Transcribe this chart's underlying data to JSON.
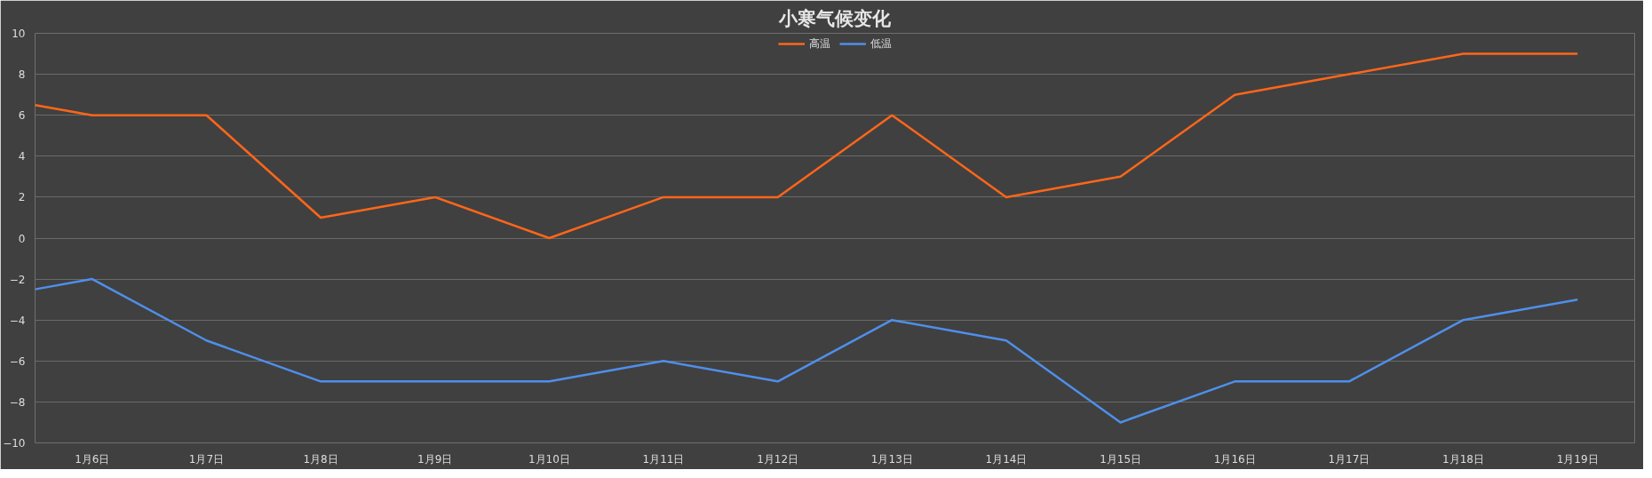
{
  "chart_data": {
    "type": "line",
    "title": "小寒气候变化",
    "x": [
      "--01-05T12:00",
      "--01-06",
      "--01-07",
      "--01-08",
      "--01-09",
      "--01-10",
      "--01-11",
      "--01-12",
      "--01-13",
      "--01-14",
      "--01-15",
      "--01-16",
      "--01-17",
      "--01-18",
      "--01-19"
    ],
    "series": [
      {
        "name": "高温",
        "color": "#ff6619",
        "values": [
          6.5,
          6,
          6,
          1,
          2,
          0,
          2,
          2,
          6,
          2,
          3,
          7,
          8,
          9,
          9
        ]
      },
      {
        "name": "低温",
        "color": "#4f8fea",
        "values": [
          -2.5,
          -2,
          -5,
          -7,
          -7,
          -7,
          -6,
          -7,
          -4,
          -5,
          -9,
          -7,
          -7,
          -4,
          -3
        ]
      }
    ],
    "xlim": [
      "--01-05T12:00",
      "--01-19T12:00"
    ],
    "xticks": [
      {
        "value": "--01-06",
        "label": "1月6日"
      },
      {
        "value": "--01-07",
        "label": "1月7日"
      },
      {
        "value": "--01-08",
        "label": "1月8日"
      },
      {
        "value": "--01-09",
        "label": "1月9日"
      },
      {
        "value": "--01-10",
        "label": "1月10日"
      },
      {
        "value": "--01-11",
        "label": "1月11日"
      },
      {
        "value": "--01-12",
        "label": "1月12日"
      },
      {
        "value": "--01-13",
        "label": "1月13日"
      },
      {
        "value": "--01-14",
        "label": "1月14日"
      },
      {
        "value": "--01-15",
        "label": "1月15日"
      },
      {
        "value": "--01-16",
        "label": "1月16日"
      },
      {
        "value": "--01-17",
        "label": "1月17日"
      },
      {
        "value": "--01-18",
        "label": "1月18日"
      },
      {
        "value": "--01-19",
        "label": "1月19日"
      }
    ],
    "ylim": [
      -10,
      10
    ],
    "yticks": [
      -10,
      -8,
      -6,
      -4,
      -2,
      0,
      2,
      4,
      6,
      8,
      10
    ],
    "grid": "y",
    "legend": "top",
    "line_style": "solid"
  }
}
